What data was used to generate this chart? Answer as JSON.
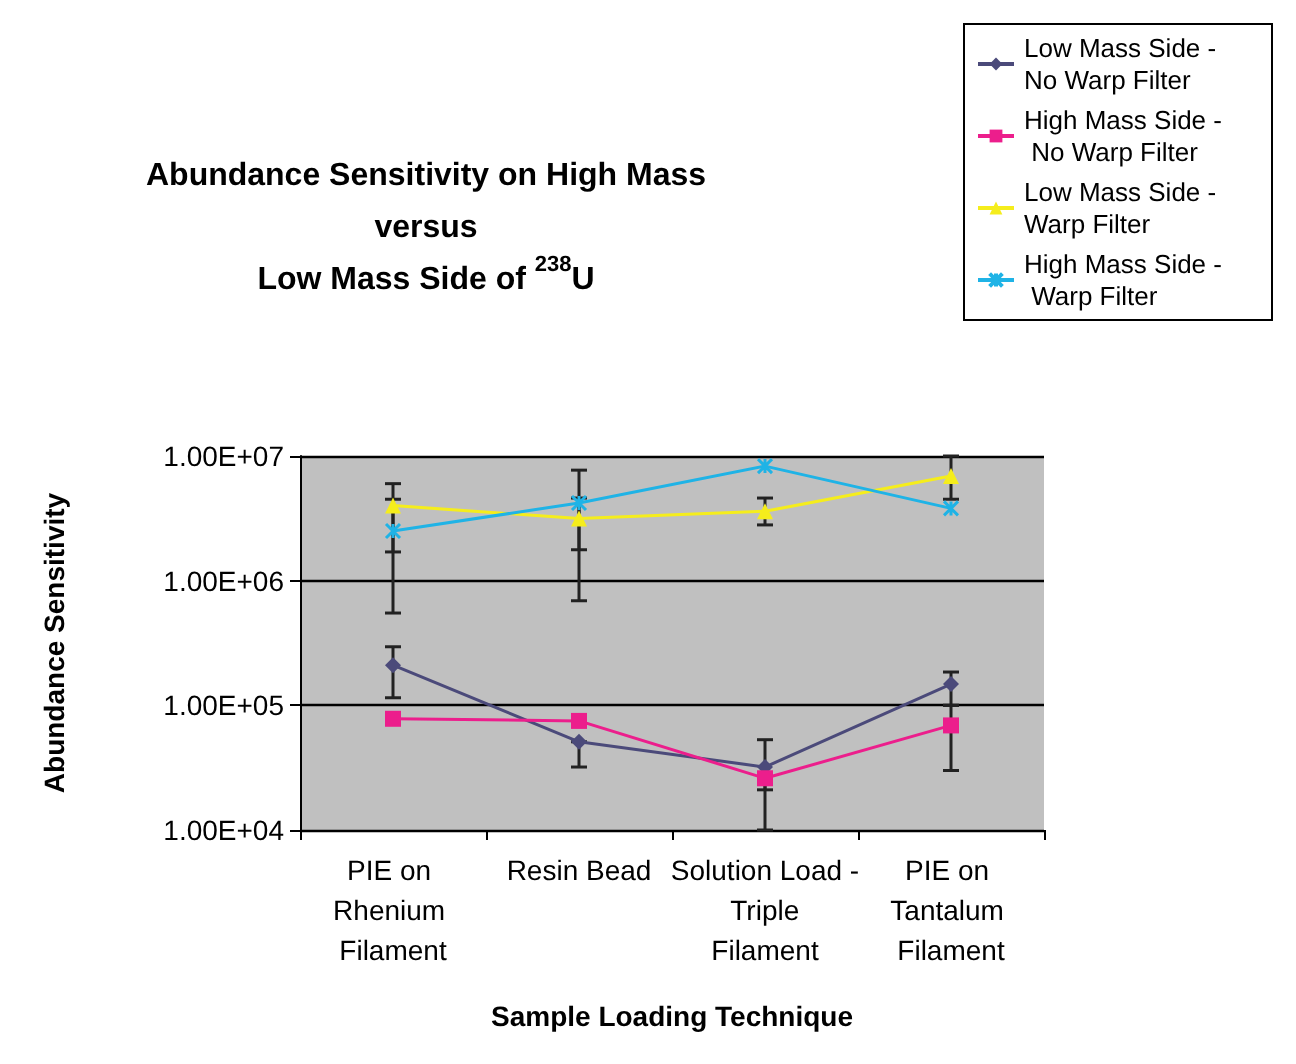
{
  "chart_data": {
    "type": "line",
    "title": "Abundance Sensitivity on High Mass\nversus\nLow Mass Side of $^{238}$U",
    "xlabel": "Sample Loading Technique",
    "ylabel": "Abundance Sensitivity",
    "categories": [
      "PIE on Rhenium Filament",
      "Resin Bead",
      "Solution Load - Triple Filament",
      "PIE on Tantalum Filament"
    ],
    "log": "y",
    "ylim": [
      10000,
      10000000
    ],
    "yticks": [
      {
        "value": 10000,
        "label": "1.00E+04"
      },
      {
        "value": 100000,
        "label": "1.00E+05"
      },
      {
        "value": 1000000,
        "label": "1.00E+06"
      },
      {
        "value": 10000000,
        "label": "1.00E+07"
      }
    ],
    "grid": "y",
    "legend": "top right",
    "series": [
      {
        "name": "Low Mass Side - No Warp Filter",
        "color": "#4b4a7a",
        "marker": "diamond",
        "values": [
          210000,
          51000,
          32000,
          148000
        ],
        "errors": [
          [
            115000,
            295000
          ],
          [
            32000,
            51000
          ],
          [
            21000,
            53000
          ],
          [
            100000,
            185000
          ]
        ]
      },
      {
        "name": "High Mass Side - No Warp Filter",
        "color": "#ec1e8c",
        "marker": "square",
        "values": [
          78000,
          75000,
          26000,
          69000
        ],
        "errors": [
          null,
          null,
          [
            10000,
            26000
          ],
          [
            30000,
            100000
          ]
        ]
      },
      {
        "name": "Low Mass Side - Warp Filter",
        "color": "#f5ed1c",
        "marker": "triangle",
        "values": [
          4000000,
          3150000,
          3600000,
          6900000
        ],
        "errors": [
          [
            1700000,
            6000000
          ],
          [
            1770000,
            4600000
          ],
          [
            2800000,
            4600000
          ],
          [
            4500000,
            10000000
          ]
        ]
      },
      {
        "name": "High Mass Side - Warp Filter",
        "color": "#1fb3e6",
        "marker": "cross",
        "values": [
          2500000,
          4200000,
          8300000,
          3800000
        ],
        "errors": [
          [
            550000,
            4500000
          ],
          [
            690000,
            7700000
          ],
          null,
          null
        ]
      }
    ]
  }
}
